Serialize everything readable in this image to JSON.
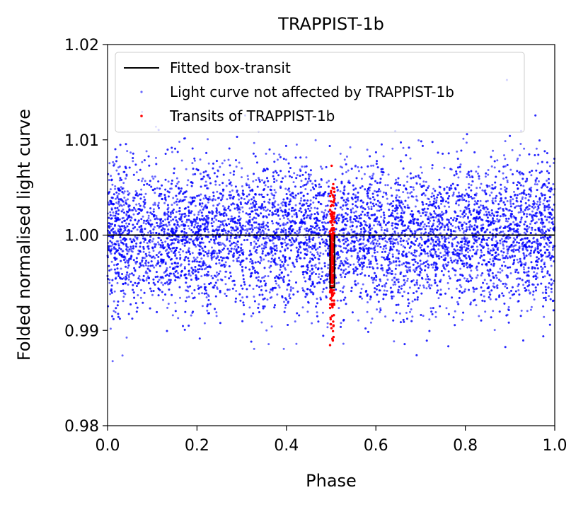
{
  "chart_data": {
    "type": "scatter",
    "title": "TRAPPIST-1b",
    "xlabel": "Phase",
    "ylabel": "Folded normalised light curve",
    "xlim": [
      0.0,
      1.0
    ],
    "ylim": [
      0.98,
      1.02
    ],
    "x_ticks": [
      0.0,
      0.2,
      0.4,
      0.6,
      0.8,
      1.0
    ],
    "x_tick_labels": [
      "0.0",
      "0.2",
      "0.4",
      "0.6",
      "0.8",
      "1.0"
    ],
    "y_ticks": [
      0.98,
      0.99,
      1.0,
      1.01,
      1.02
    ],
    "y_tick_labels": [
      "0.98",
      "0.99",
      "1.00",
      "1.01",
      "1.02"
    ],
    "legend_position": "top-right",
    "colors": {
      "model": "#000000",
      "baseline": "#0000ff",
      "transit": "#ff0000"
    },
    "series": [
      {
        "name": "Fitted box-transit",
        "kind": "line",
        "x": [
          0.0,
          0.4975,
          0.4975,
          0.5075,
          0.5075,
          1.0
        ],
        "y": [
          1.0,
          1.0,
          0.9945,
          0.9945,
          1.0,
          1.0
        ]
      },
      {
        "name": "Light curve not affected by TRAPPIST-1b",
        "kind": "points",
        "count": 9000,
        "center": 1.0,
        "std": 0.0038,
        "x_range": [
          0.0,
          1.0
        ],
        "excluded_x_range": [
          0.4975,
          0.5075
        ]
      },
      {
        "name": "Transits of TRAPPIST-1b",
        "kind": "points",
        "count": 260,
        "center": 0.9975,
        "std": 0.0035,
        "x_range": [
          0.4975,
          0.5075
        ]
      }
    ]
  }
}
